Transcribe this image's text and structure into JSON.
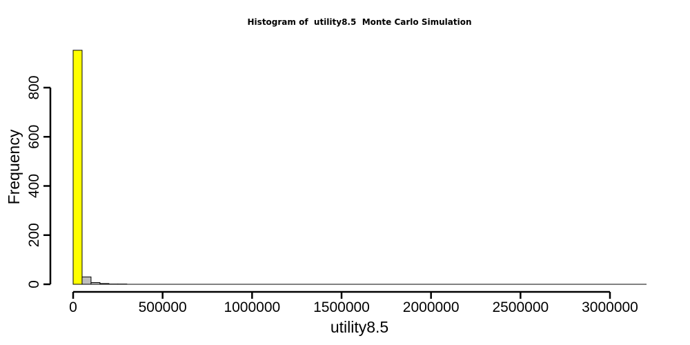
{
  "chart_data": {
    "type": "bar",
    "title": "Histogram of  utility8.5  Monte Carlo Simulation",
    "xlabel": "utility8.5",
    "ylabel": "Frequency",
    "bin_width": 50000,
    "bins": [
      {
        "start": 0,
        "end": 50000,
        "count": 952,
        "highlight": true
      },
      {
        "start": 50000,
        "end": 100000,
        "count": 30,
        "highlight": false
      },
      {
        "start": 100000,
        "end": 150000,
        "count": 7,
        "highlight": false
      },
      {
        "start": 150000,
        "end": 200000,
        "count": 3,
        "highlight": false
      },
      {
        "start": 200000,
        "end": 250000,
        "count": 1,
        "highlight": false
      },
      {
        "start": 250000,
        "end": 300000,
        "count": 1,
        "highlight": false
      }
    ],
    "xlim": [
      0,
      3200000
    ],
    "ylim": [
      0,
      952
    ],
    "x_ticks": [
      0,
      500000,
      1000000,
      1500000,
      2000000,
      2500000,
      3000000
    ],
    "x_tick_labels": [
      "0",
      "500000",
      "1000000",
      "1500000",
      "2000000",
      "2500000",
      "3000000"
    ],
    "y_ticks": [
      0,
      200,
      400,
      600,
      800
    ],
    "y_tick_labels": [
      "0",
      "200",
      "400",
      "600",
      "800"
    ],
    "colors": {
      "highlight_bar": "#ffff00",
      "bar": "#bebebe",
      "stroke": "#000000"
    },
    "grid": false,
    "legend": "none"
  }
}
